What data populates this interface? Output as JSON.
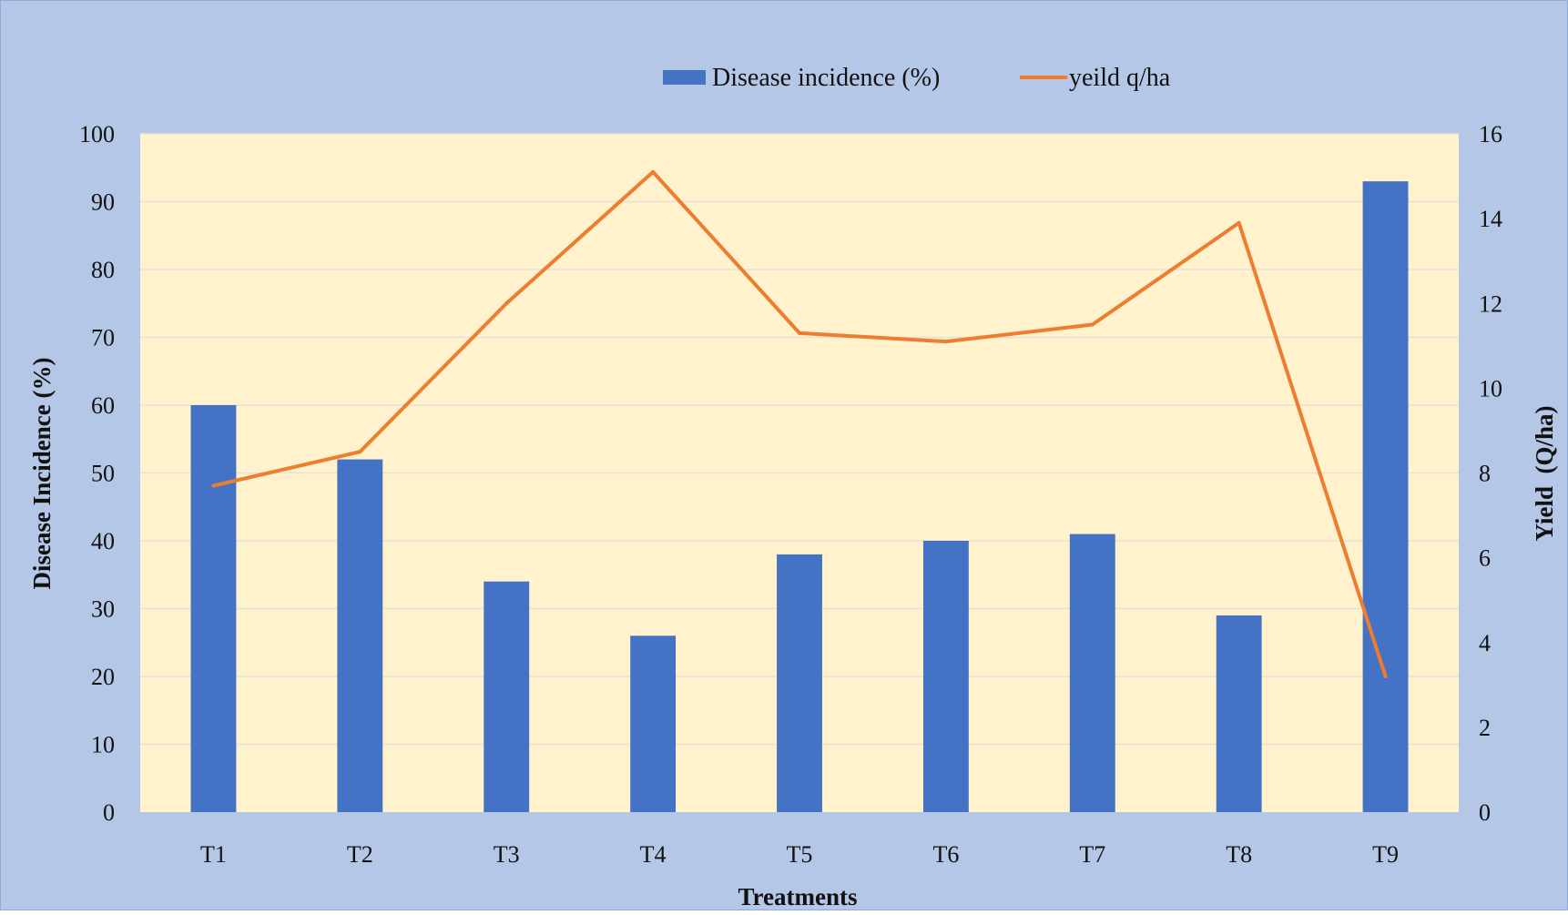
{
  "colors": {
    "outer_background": "#b4c7e7",
    "plot_background": "#fff2cc",
    "gridline": "#e6e2d6",
    "bar": "#4472c4",
    "line": "#ed7d31",
    "text": "#111111"
  },
  "chart_data": {
    "type": "bar",
    "categories": [
      "T1",
      "T2",
      "T3",
      "T4",
      "T5",
      "T6",
      "T7",
      "T8",
      "T9"
    ],
    "series": [
      {
        "name": "Disease incidence (%)",
        "type": "bar",
        "axis": "left",
        "values": [
          60,
          52,
          34,
          26,
          38,
          40,
          41,
          29,
          93
        ]
      },
      {
        "name": "yeild q/ha",
        "type": "line",
        "axis": "right",
        "values": [
          7.7,
          8.5,
          12,
          15.1,
          11.3,
          11.1,
          11.5,
          13.9,
          3.2
        ]
      }
    ],
    "xlabel": "Treatments",
    "ylabel": "Disease Incidence (%)",
    "y2label": "Yield  (Q/ha)",
    "ylim": [
      0,
      100
    ],
    "y2lim": [
      0,
      16
    ],
    "yticks": [
      "0",
      "10",
      "20",
      "30",
      "40",
      "50",
      "60",
      "70",
      "80",
      "90",
      "100"
    ],
    "y2ticks": [
      "0",
      "2",
      "4",
      "6",
      "8",
      "10",
      "12",
      "14",
      "16"
    ],
    "grid": true,
    "legend_position": "top-center"
  }
}
